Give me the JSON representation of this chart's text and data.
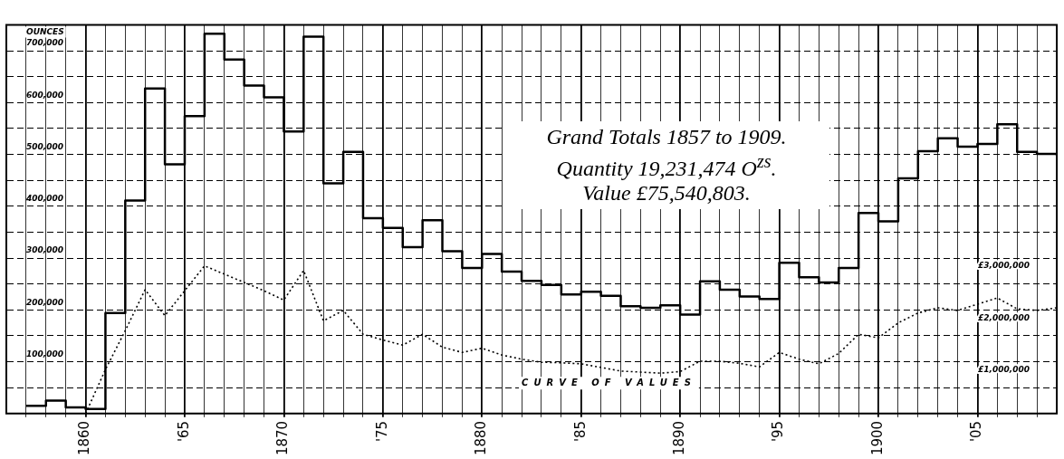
{
  "chart_data": {
    "type": "step",
    "ylabel": "OUNCES",
    "annotations": [
      "Grand Totals 1857 to 1909.",
      "Quantity 19,231,474 O$^{zs}$.",
      "Value £75,540,803."
    ],
    "series": [
      {
        "color": "#000000",
        "x": [
          1857,
          1858,
          1859,
          1860,
          1861,
          1862,
          1863,
          1864,
          1865,
          1866,
          1867,
          1868,
          1869,
          1870,
          1871,
          1872,
          1873,
          1874,
          1875,
          1876,
          1877,
          1878,
          1879,
          1880,
          1881,
          1882,
          1883,
          1884,
          1885,
          1886,
          1887,
          1888,
          1889,
          1890,
          1891,
          1892,
          1893,
          1894,
          1895,
          1896,
          1897,
          1898,
          1899,
          1900,
          1901,
          1902,
          1903,
          1904,
          1905,
          1906,
          1907,
          1908,
          1909
        ],
        "values": [
          15000,
          25000,
          12000,
          9000,
          194000,
          411000,
          627000,
          481000,
          574000,
          733000,
          683000,
          633000,
          610000,
          544000,
          727000,
          444000,
          505000,
          377000,
          358000,
          321000,
          373000,
          313000,
          281000,
          308000,
          274000,
          256000,
          248000,
          230000,
          235000,
          227000,
          207000,
          204000,
          209000,
          191000,
          255000,
          239000,
          226000,
          221000,
          291000,
          263000,
          253000,
          281000,
          387000,
          371000,
          454000,
          506000,
          531000,
          515000,
          520000,
          558000,
          505000,
          501000,
          498000
        ]
      },
      {
        "type": "line",
        "name": "CURVE OF VALUES",
        "axis": "y2",
        "color": "#000000",
        "line_style": "dotted",
        "x": [
          1860,
          1861,
          1862,
          1863,
          1864,
          1865,
          1866,
          1867,
          1868,
          1869,
          1870,
          1871,
          1872,
          1873,
          1874,
          1875,
          1876,
          1877,
          1878,
          1879,
          1880,
          1881,
          1882,
          1883,
          1884,
          1885,
          1886,
          1887,
          1888,
          1889,
          1890,
          1891,
          1892,
          1893,
          1894,
          1895,
          1896,
          1897,
          1898,
          1899,
          1900,
          1901,
          1902,
          1903,
          1904,
          1905,
          1906,
          1907,
          1908,
          1909
        ],
        "values": [
          0,
          850000,
          1600000,
          2390000,
          1890000,
          2370000,
          2850000,
          2690000,
          2530000,
          2370000,
          2190000,
          2760000,
          1790000,
          1990000,
          1530000,
          1420000,
          1320000,
          1530000,
          1280000,
          1180000,
          1260000,
          1130000,
          1050000,
          990000,
          980000,
          960000,
          890000,
          820000,
          800000,
          780000,
          810000,
          1010000,
          1010000,
          970000,
          900000,
          1180000,
          1050000,
          960000,
          1160000,
          1530000,
          1460000,
          1750000,
          1940000,
          2040000,
          1990000,
          2110000,
          2230000,
          2020000,
          1990000,
          2040000
        ]
      }
    ],
    "xlim": [
      1856,
      1909
    ],
    "xticks": [
      {
        "value": 1857,
        "label": null
      },
      {
        "value": 1858,
        "label": null
      },
      {
        "value": 1859,
        "label": null
      },
      1860,
      {
        "value": 1861,
        "label": null
      },
      {
        "value": 1862,
        "label": null
      },
      {
        "value": 1863,
        "label": null
      },
      {
        "value": 1864,
        "label": null
      },
      {
        "value": 1865,
        "label": "'65"
      },
      {
        "value": 1866,
        "label": null
      },
      {
        "value": 1867,
        "label": null
      },
      {
        "value": 1868,
        "label": null
      },
      {
        "value": 1869,
        "label": null
      },
      1870,
      {
        "value": 1871,
        "label": null
      },
      {
        "value": 1872,
        "label": null
      },
      {
        "value": 1873,
        "label": null
      },
      {
        "value": 1874,
        "label": null
      },
      {
        "value": 1875,
        "label": "'75"
      },
      {
        "value": 1876,
        "label": null
      },
      {
        "value": 1877,
        "label": null
      },
      {
        "value": 1878,
        "label": null
      },
      {
        "value": 1879,
        "label": null
      },
      1880,
      {
        "value": 1881,
        "label": null
      },
      {
        "value": 1882,
        "label": null
      },
      {
        "value": 1883,
        "label": null
      },
      {
        "value": 1884,
        "label": null
      },
      {
        "value": 1885,
        "label": "'85"
      },
      {
        "value": 1886,
        "label": null
      },
      {
        "value": 1887,
        "label": null
      },
      {
        "value": 1888,
        "label": null
      },
      {
        "value": 1889,
        "label": null
      },
      1890,
      {
        "value": 1891,
        "label": null
      },
      {
        "value": 1892,
        "label": null
      },
      {
        "value": 1893,
        "label": null
      },
      {
        "value": 1894,
        "label": null
      },
      {
        "value": 1895,
        "label": "'95"
      },
      {
        "value": 1896,
        "label": null
      },
      {
        "value": 1897,
        "label": null
      },
      {
        "value": 1898,
        "label": null
      },
      {
        "value": 1899,
        "label": null
      },
      1900,
      {
        "value": 1901,
        "label": null
      },
      {
        "value": 1902,
        "label": null
      },
      {
        "value": 1903,
        "label": null
      },
      {
        "value": 1904,
        "label": null
      },
      {
        "value": 1905,
        "label": "'05"
      },
      {
        "value": 1906,
        "label": null
      },
      {
        "value": 1907,
        "label": null
      },
      {
        "value": 1908,
        "label": null
      }
    ],
    "ylim": [
      0,
      750000
    ],
    "yticks": [
      {
        "value": 50000,
        "label": null
      },
      {
        "value": 100000,
        "label": "100,000"
      },
      {
        "value": 150000,
        "label": null
      },
      {
        "value": 200000,
        "label": "200,000"
      },
      {
        "value": 250000,
        "label": null
      },
      {
        "value": 300000,
        "label": "300,000"
      },
      {
        "value": 350000,
        "label": null
      },
      {
        "value": 400000,
        "label": "400,000"
      },
      {
        "value": 450000,
        "label": null
      },
      {
        "value": 500000,
        "label": "500,000"
      },
      {
        "value": 550000,
        "label": null
      },
      {
        "value": 600000,
        "label": "600,000"
      },
      {
        "value": 650000,
        "label": null
      },
      {
        "value": 700000,
        "label": "700,000"
      }
    ],
    "y2lim": [
      0,
      7500000
    ],
    "y2ticks": [
      {
        "value": 1000000,
        "label": "£1,000,000"
      },
      {
        "value": 2000000,
        "label": "£2,000,000"
      },
      {
        "value": 3000000,
        "label": "£3,000,000"
      }
    ],
    "grid": true,
    "legend": false
  }
}
